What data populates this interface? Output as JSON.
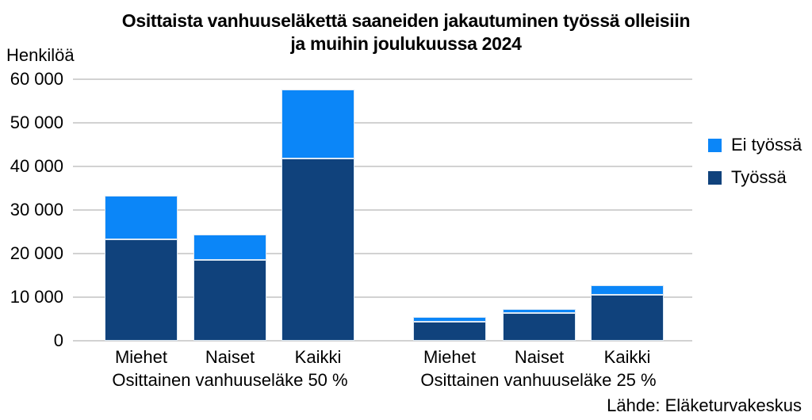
{
  "chart_data": {
    "type": "bar",
    "stacked": true,
    "title_lines": [
      "Osittaista vanhuuseläkettä saaneiden jakautuminen työssä olleisiin",
      "ja muihin joulukuussa 2024"
    ],
    "ylabel": "Henkilöä",
    "ylim": [
      0,
      60000
    ],
    "ytick_step": 10000,
    "ytick_labels": [
      "0",
      "10 000",
      "20 000",
      "30 000",
      "40 000",
      "50 000",
      "60 000"
    ],
    "grid": true,
    "legend_position": "right",
    "legend": [
      {
        "label": "Ei työssä",
        "color": "#0b86f8"
      },
      {
        "label": "Työssä",
        "color": "#10427c"
      }
    ],
    "groups": [
      {
        "label": "Osittainen vanhuuseläke 50 %",
        "categories": [
          "Miehet",
          "Naiset",
          "Kaikki"
        ]
      },
      {
        "label": "Osittainen vanhuuseläke 25 %",
        "categories": [
          "Miehet",
          "Naiset",
          "Kaikki"
        ]
      }
    ],
    "categories": [
      "Miehet",
      "Naiset",
      "Kaikki",
      "Miehet",
      "Naiset",
      "Kaikki"
    ],
    "series": [
      {
        "name": "Työssä",
        "color": "#10427c",
        "values": [
          23300,
          18500,
          41800,
          4300,
          6300,
          10600
        ]
      },
      {
        "name": "Ei työssä",
        "color": "#0b86f8",
        "values": [
          10000,
          5900,
          15900,
          1100,
          1000,
          2100
        ]
      }
    ],
    "source": "Lähde: Eläketurvakeskus"
  }
}
